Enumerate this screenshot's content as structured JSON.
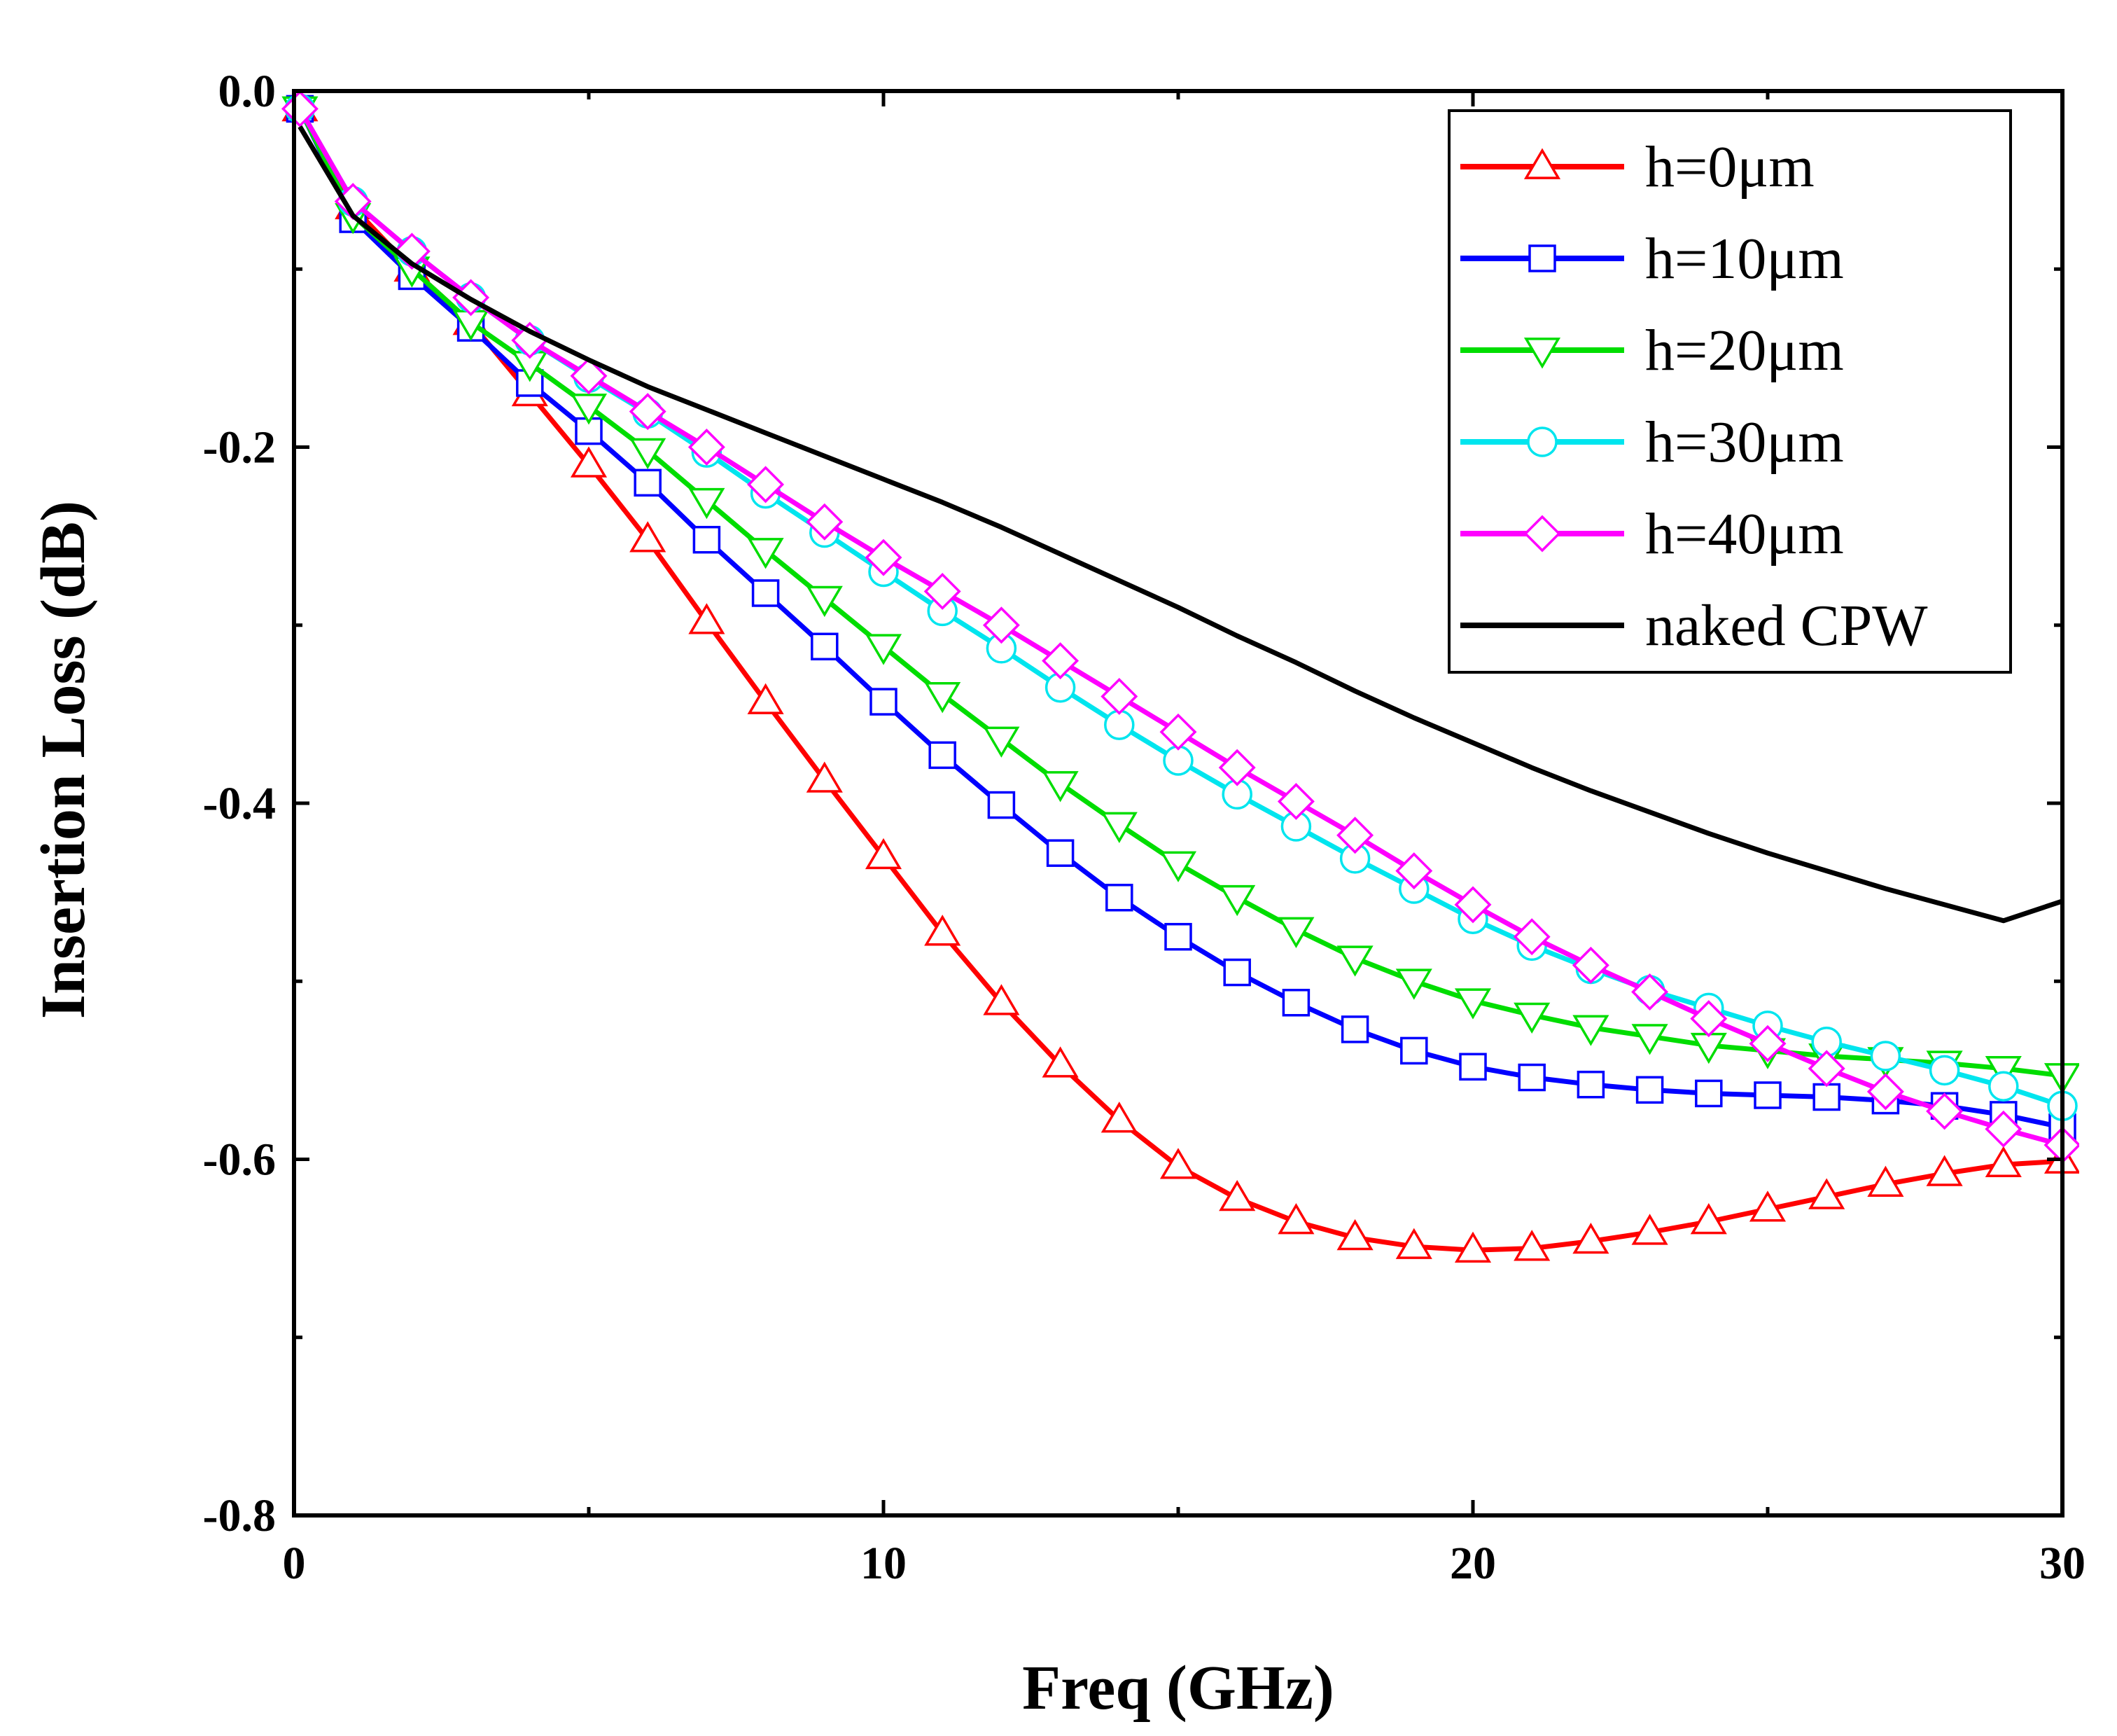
{
  "chart_data": {
    "type": "line",
    "title": "",
    "xlabel": "Freq (GHz)",
    "ylabel": "Insertion Loss (dB)",
    "xlim": [
      0,
      30
    ],
    "ylim": [
      -0.8,
      0.0
    ],
    "x_major_ticks": [
      0,
      10,
      20,
      30
    ],
    "x_tick_labels": [
      "0",
      "10",
      "20",
      "30"
    ],
    "x_minor_ticks": [
      5,
      15,
      25
    ],
    "y_major_ticks": [
      0.0,
      -0.2,
      -0.4,
      -0.6,
      -0.8
    ],
    "y_tick_labels": [
      "0.0",
      "-0.2",
      "-0.4",
      "-0.6",
      "-0.8"
    ],
    "y_minor_ticks": [
      -0.1,
      -0.3,
      -0.5,
      -0.7
    ],
    "grid": false,
    "legend_position": "top-right",
    "x": [
      0.1,
      1,
      2,
      3,
      4,
      5,
      6,
      7,
      8,
      9,
      10,
      11,
      12,
      13,
      14,
      15,
      16,
      17,
      18,
      19,
      20,
      21,
      22,
      23,
      24,
      25,
      26,
      27,
      28,
      29,
      30
    ],
    "series": [
      {
        "name": "h=0μm",
        "color": "#ff0000",
        "marker": "triangle-up",
        "values": [
          -0.01,
          -0.065,
          -0.1,
          -0.13,
          -0.17,
          -0.21,
          -0.252,
          -0.298,
          -0.343,
          -0.387,
          -0.43,
          -0.473,
          -0.512,
          -0.547,
          -0.578,
          -0.604,
          -0.622,
          -0.635,
          -0.644,
          -0.649,
          -0.651,
          -0.65,
          -0.646,
          -0.641,
          -0.635,
          -0.628,
          -0.621,
          -0.614,
          -0.608,
          -0.603,
          -0.601
        ]
      },
      {
        "name": "h=10μm",
        "color": "#0000ff",
        "marker": "square",
        "values": [
          -0.01,
          -0.072,
          -0.104,
          -0.133,
          -0.164,
          -0.191,
          -0.22,
          -0.252,
          -0.282,
          -0.312,
          -0.343,
          -0.373,
          -0.401,
          -0.428,
          -0.453,
          -0.475,
          -0.495,
          -0.512,
          -0.527,
          -0.539,
          -0.548,
          -0.554,
          -0.558,
          -0.561,
          -0.563,
          -0.564,
          -0.565,
          -0.567,
          -0.57,
          -0.575,
          -0.582
        ]
      },
      {
        "name": "h=20μm",
        "color": "#00dd00",
        "marker": "triangle-down",
        "values": [
          -0.01,
          -0.07,
          -0.1,
          -0.13,
          -0.153,
          -0.177,
          -0.202,
          -0.23,
          -0.258,
          -0.285,
          -0.312,
          -0.339,
          -0.364,
          -0.389,
          -0.412,
          -0.434,
          -0.453,
          -0.471,
          -0.487,
          -0.5,
          -0.511,
          -0.519,
          -0.526,
          -0.531,
          -0.536,
          -0.539,
          -0.542,
          -0.544,
          -0.546,
          -0.549,
          -0.553
        ]
      },
      {
        "name": "h=30μm",
        "color": "#00e5ee",
        "marker": "circle",
        "values": [
          -0.01,
          -0.062,
          -0.09,
          -0.116,
          -0.14,
          -0.161,
          -0.181,
          -0.203,
          -0.226,
          -0.248,
          -0.27,
          -0.292,
          -0.313,
          -0.335,
          -0.356,
          -0.376,
          -0.395,
          -0.413,
          -0.431,
          -0.448,
          -0.465,
          -0.48,
          -0.493,
          -0.505,
          -0.515,
          -0.525,
          -0.534,
          -0.542,
          -0.55,
          -0.559,
          -0.57
        ]
      },
      {
        "name": "h=40μm",
        "color": "#ff00ff",
        "marker": "diamond",
        "values": [
          -0.01,
          -0.062,
          -0.09,
          -0.116,
          -0.14,
          -0.16,
          -0.18,
          -0.2,
          -0.221,
          -0.242,
          -0.262,
          -0.281,
          -0.3,
          -0.32,
          -0.34,
          -0.36,
          -0.38,
          -0.399,
          -0.418,
          -0.438,
          -0.457,
          -0.475,
          -0.491,
          -0.506,
          -0.521,
          -0.535,
          -0.549,
          -0.562,
          -0.573,
          -0.583,
          -0.592
        ]
      },
      {
        "name": "naked CPW",
        "color": "#000000",
        "marker": "none",
        "values": [
          -0.02,
          -0.07,
          -0.097,
          -0.117,
          -0.135,
          -0.151,
          -0.166,
          -0.179,
          -0.192,
          -0.205,
          -0.218,
          -0.231,
          -0.245,
          -0.26,
          -0.275,
          -0.29,
          -0.306,
          -0.321,
          -0.337,
          -0.352,
          -0.366,
          -0.38,
          -0.393,
          -0.405,
          -0.417,
          -0.428,
          -0.438,
          -0.448,
          -0.457,
          -0.466,
          -0.455
        ]
      }
    ]
  }
}
